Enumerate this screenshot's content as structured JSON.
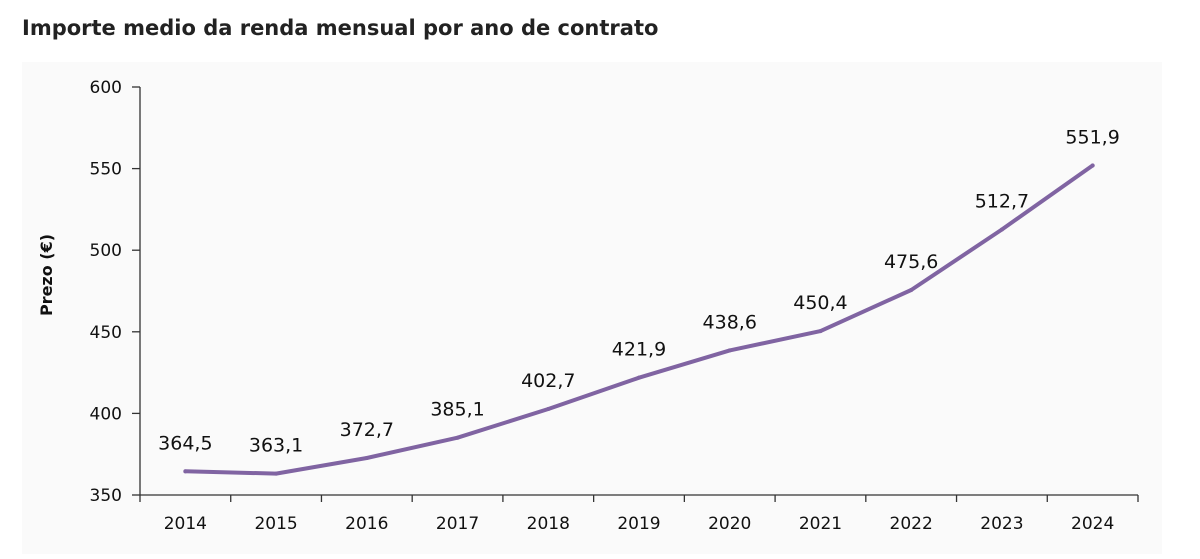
{
  "chart_data": {
    "type": "line",
    "title": "Importe medio da renda mensual por ano de contrato",
    "xlabel": "",
    "ylabel": "Prezo (€)",
    "ylim": [
      350,
      600
    ],
    "yticks": [
      350,
      400,
      450,
      500,
      550,
      600
    ],
    "categories": [
      "2014",
      "2015",
      "2016",
      "2017",
      "2018",
      "2019",
      "2020",
      "2021",
      "2022",
      "2023",
      "2024"
    ],
    "values": [
      364.5,
      363.1,
      372.7,
      385.1,
      402.7,
      421.9,
      438.6,
      450.4,
      475.6,
      512.7,
      551.9
    ],
    "data_labels": [
      "364,5",
      "363,1",
      "372,7",
      "385,1",
      "402,7",
      "421,9",
      "438,6",
      "450,4",
      "475,6",
      "512,7",
      "551,9"
    ],
    "line_color": "#8064a2",
    "grid": false,
    "legend": "none"
  }
}
